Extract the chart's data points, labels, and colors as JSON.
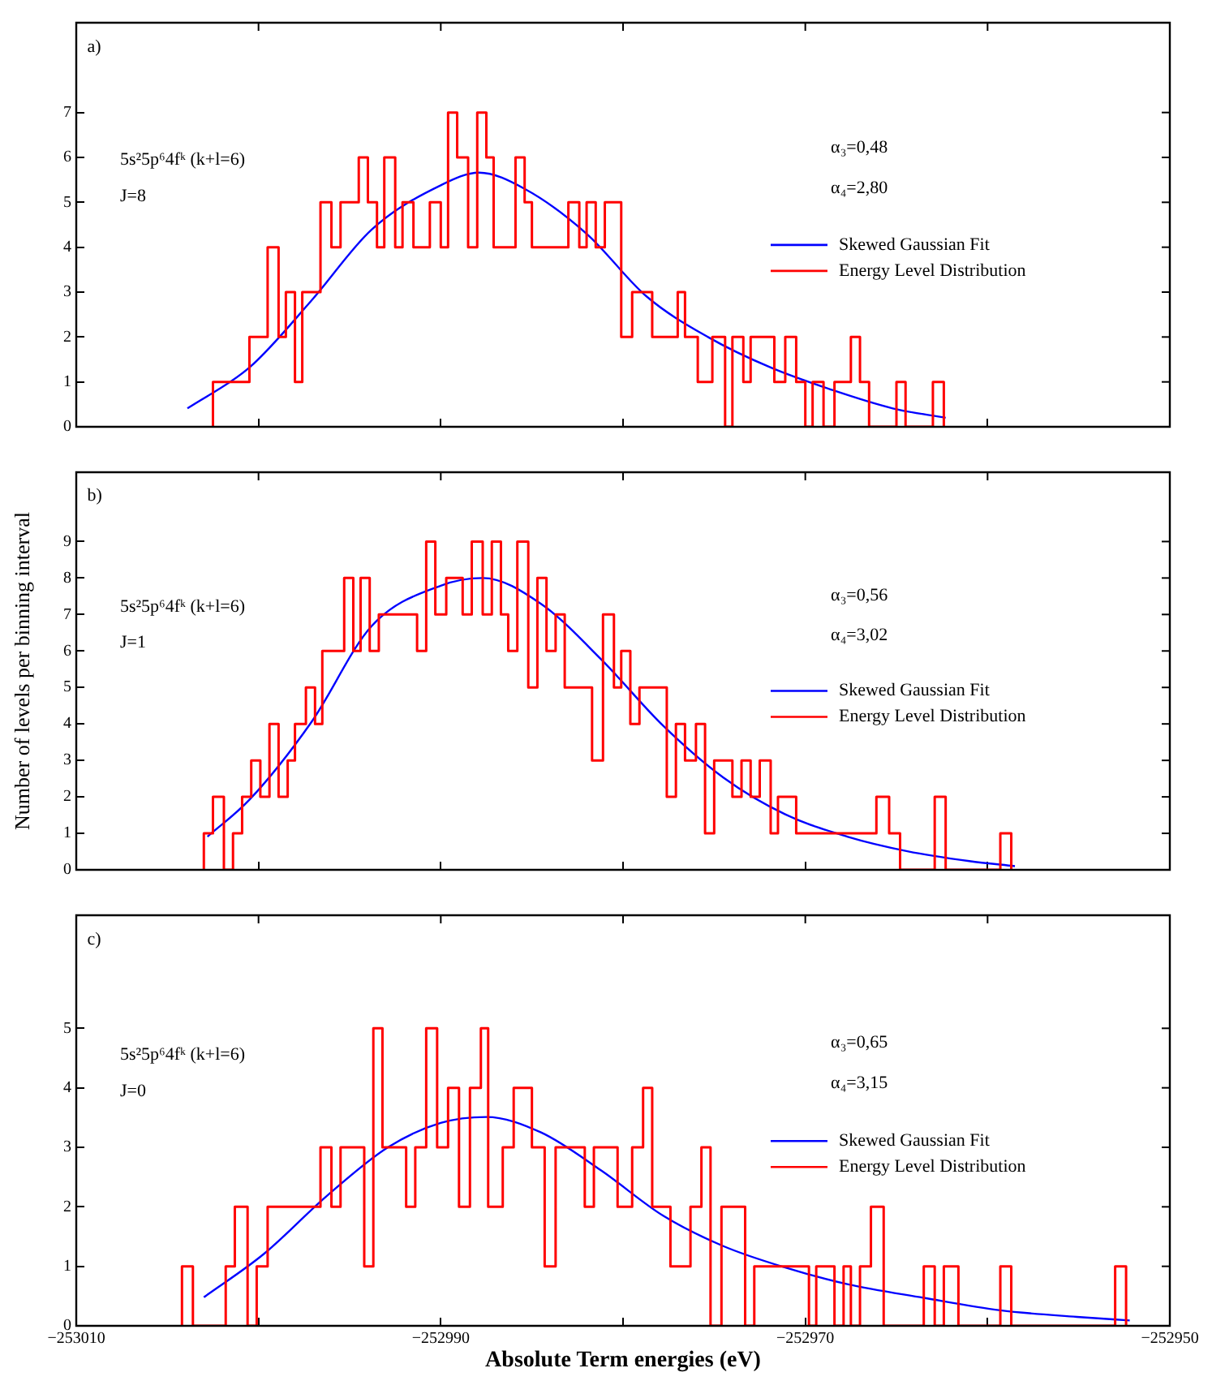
{
  "chart_data": [
    {
      "type": "histogram",
      "annotations": [
        "a)",
        "5s²5p⁶4fᵏ (k+l=6)",
        "J=8",
        "α₃=0,48",
        "α₄=2,80"
      ],
      "xlim": [
        -253010,
        -252950
      ],
      "xticks": [
        -253010,
        {
          "value": -253000,
          "label": null
        },
        -252990,
        {
          "value": -252980,
          "label": null
        },
        -252970,
        {
          "value": -252960,
          "label": null
        },
        -252950
      ],
      "ylim": [
        0,
        9
      ],
      "yticks": [
        0,
        1,
        2,
        3,
        4,
        5,
        6,
        7
      ],
      "tick_labels": "y",
      "legend": "right",
      "series": [
        {
          "type": "line",
          "name": "Skewed Gaussian Fit",
          "color": "#0000ff",
          "x": [
            -253003.9,
            -253000.5,
            -252997.1,
            -252993.8,
            -252990.0,
            -252987.9,
            -252985.4,
            -252982.0,
            -252978.7,
            -252975.3,
            -252971.9,
            -252968.6,
            -252965.2,
            -252962.3
          ],
          "values": [
            0.41,
            1.32,
            2.81,
            4.39,
            5.38,
            5.66,
            5.3,
            4.3,
            2.9,
            1.99,
            1.32,
            0.83,
            0.41,
            0.2
          ]
        },
        {
          "type": "histogram",
          "name": "Energy Level Distribution",
          "color": "#ff0000",
          "bins": [
            -253002.5,
            -253000.5,
            -252999.5,
            -252998.9,
            -252998.5,
            -252998.0,
            -252997.6,
            -252996.6,
            -252996.0,
            -252995.5,
            -252994.5,
            -252994.0,
            -252993.5,
            -252993.1,
            -252992.5,
            -252992.1,
            -252991.5,
            -252990.6,
            -252990.0,
            -252989.6,
            -252989.1,
            -252988.5,
            -252988.0,
            -252987.5,
            -252987.1,
            -252985.9,
            -252985.4,
            -252985.0,
            -252983.0,
            -252982.4,
            -252982.0,
            -252981.5,
            -252981.0,
            -252980.1,
            -252979.5,
            -252978.4,
            -252977.0,
            -252976.6,
            -252975.9,
            -252975.1,
            -252974.4,
            -252974.0,
            -252973.4,
            -252973.0,
            -252971.7,
            -252971.1,
            -252970.5,
            -252970.0,
            -252969.6,
            -252969.0,
            -252968.4,
            -252967.5,
            -252967.0,
            -252966.5,
            -252965.0,
            -252964.5,
            -252963.0,
            -252962.4
          ],
          "values": [
            1,
            2,
            4,
            2,
            3,
            1,
            3,
            5,
            4,
            5,
            6,
            5,
            4,
            6,
            4,
            5,
            4,
            5,
            4,
            7,
            6,
            4,
            7,
            6,
            4,
            6,
            5,
            4,
            5,
            4,
            5,
            4,
            5,
            2,
            3,
            2,
            3,
            2,
            1,
            2,
            0,
            2,
            1,
            2,
            1,
            2,
            1,
            0,
            1,
            0,
            1,
            2,
            1,
            0,
            1,
            0,
            1
          ]
        }
      ]
    },
    {
      "type": "histogram",
      "ylabel": "Number of levels per binning interval",
      "annotations": [
        "b)",
        "5s²5p⁶4fᵏ (k+l=6)",
        "J=1",
        "α₃=0,56",
        "α₄=3,02"
      ],
      "xlim": [
        -253010,
        -252950
      ],
      "xticks": [
        -253010,
        {
          "value": -253000,
          "label": null
        },
        -252990,
        {
          "value": -252980,
          "label": null
        },
        -252970,
        {
          "value": -252960,
          "label": null
        },
        -252950
      ],
      "ylim": [
        0,
        10.9
      ],
      "yticks": [
        0,
        1,
        2,
        3,
        4,
        5,
        6,
        7,
        8,
        9
      ],
      "tick_labels": "y",
      "legend": "right",
      "series": [
        {
          "type": "line",
          "name": "Skewed Gaussian Fit",
          "color": "#0000ff",
          "x": [
            -253002.8,
            -253000.5,
            -252997.1,
            -252993.8,
            -252990.0,
            -252987.7,
            -252984.5,
            -252981.2,
            -252977.8,
            -252974.5,
            -252971.1,
            -252967.7,
            -252964.4,
            -252961.0,
            -252958.5
          ],
          "values": [
            0.91,
            1.92,
            4.05,
            6.68,
            7.79,
            8.0,
            7.29,
            5.77,
            3.95,
            2.53,
            1.52,
            0.91,
            0.51,
            0.24,
            0.1
          ]
        },
        {
          "type": "histogram",
          "name": "Energy Level Distribution",
          "color": "#ff0000",
          "bins": [
            -253003.0,
            -253002.5,
            -253001.9,
            -253001.4,
            -253000.9,
            -253000.4,
            -252999.9,
            -252999.4,
            -252998.9,
            -252998.4,
            -252998.0,
            -252997.4,
            -252996.9,
            -252996.5,
            -252995.3,
            -252994.8,
            -252994.4,
            -252993.9,
            -252993.4,
            -252991.3,
            -252990.8,
            -252990.3,
            -252989.7,
            -252988.8,
            -252988.3,
            -252987.7,
            -252987.2,
            -252986.7,
            -252986.3,
            -252985.8,
            -252985.2,
            -252984.7,
            -252984.2,
            -252983.7,
            -252983.2,
            -252981.7,
            -252981.1,
            -252980.5,
            -252980.1,
            -252979.6,
            -252979.1,
            -252977.6,
            -252977.1,
            -252976.6,
            -252976.0,
            -252975.5,
            -252975.0,
            -252974.0,
            -252973.5,
            -252973.0,
            -252972.5,
            -252971.9,
            -252971.5,
            -252970.5,
            -252966.1,
            -252965.4,
            -252964.8,
            -252962.9,
            -252962.3,
            -252959.3,
            -252958.7
          ],
          "values": [
            1,
            2,
            0,
            1,
            2,
            3,
            2,
            4,
            2,
            3,
            4,
            5,
            4,
            6,
            8,
            6,
            8,
            6,
            7,
            6,
            9,
            7,
            8,
            7,
            9,
            7,
            9,
            7,
            6,
            9,
            5,
            8,
            6,
            7,
            5,
            3,
            7,
            5,
            6,
            4,
            5,
            2,
            4,
            3,
            4,
            1,
            3,
            2,
            3,
            2,
            3,
            1,
            2,
            1,
            2,
            1,
            0,
            2,
            0,
            1
          ]
        }
      ]
    },
    {
      "type": "histogram",
      "xlabel": "Absolute Term energies (eV)",
      "annotations": [
        "c)",
        "5s²5p⁶4fᵏ (k+l=6)",
        "J=0",
        "α₃=0,65",
        "α₄=3,15"
      ],
      "xlim": [
        -253010,
        -252950
      ],
      "xticks": [
        -253010,
        {
          "value": -253000,
          "label": null
        },
        -252990,
        {
          "value": -252980,
          "label": null
        },
        -252970,
        {
          "value": -252960,
          "label": null
        },
        -252950
      ],
      "ylim": [
        0,
        6.9
      ],
      "yticks": [
        0,
        1,
        2,
        3,
        4,
        5
      ],
      "legend": "right",
      "series": [
        {
          "type": "line",
          "name": "Skewed Gaussian Fit",
          "color": "#0000ff",
          "x": [
            -253003.0,
            -252999.7,
            -252996.3,
            -252992.9,
            -252990.0,
            -252987.5,
            -252984.5,
            -252981.2,
            -252977.8,
            -252974.5,
            -252971.1,
            -252967.7,
            -252963.5,
            -252959.3,
            -252955.1,
            -252952.2
          ],
          "values": [
            0.48,
            1.21,
            2.17,
            3.0,
            3.41,
            3.51,
            3.25,
            2.61,
            1.85,
            1.34,
            0.98,
            0.7,
            0.47,
            0.26,
            0.15,
            0.09
          ]
        },
        {
          "type": "histogram",
          "name": "Energy Level Distribution",
          "color": "#ff0000",
          "bins": [
            -253004.2,
            -253003.6,
            -253001.8,
            -253001.3,
            -253000.6,
            -253000.1,
            -252999.5,
            -252996.6,
            -252996.0,
            -252995.5,
            -252994.2,
            -252993.7,
            -252993.2,
            -252991.9,
            -252991.4,
            -252990.8,
            -252990.2,
            -252989.6,
            -252989.0,
            -252988.4,
            -252987.8,
            -252987.4,
            -252986.6,
            -252986.0,
            -252985.0,
            -252984.3,
            -252983.7,
            -252982.1,
            -252981.6,
            -252980.3,
            -252979.5,
            -252978.9,
            -252978.4,
            -252977.4,
            -252976.3,
            -252975.7,
            -252975.2,
            -252974.6,
            -252973.3,
            -252972.8,
            -252969.8,
            -252969.4,
            -252968.4,
            -252967.9,
            -252967.5,
            -252967.0,
            -252966.4,
            -252965.7,
            -252963.5,
            -252962.9,
            -252962.4,
            -252961.6,
            -252959.3,
            -252958.7,
            -252953.0,
            -252952.4
          ],
          "values": [
            1,
            0,
            1,
            2,
            0,
            1,
            2,
            3,
            2,
            3,
            1,
            5,
            3,
            2,
            3,
            5,
            3,
            4,
            2,
            4,
            5,
            2,
            3,
            4,
            3,
            1,
            3,
            2,
            3,
            2,
            3,
            4,
            2,
            1,
            2,
            3,
            0,
            2,
            0,
            1,
            0,
            1,
            0,
            1,
            0,
            1,
            2,
            0,
            1,
            0,
            1,
            0,
            1,
            0,
            1
          ]
        }
      ]
    }
  ]
}
